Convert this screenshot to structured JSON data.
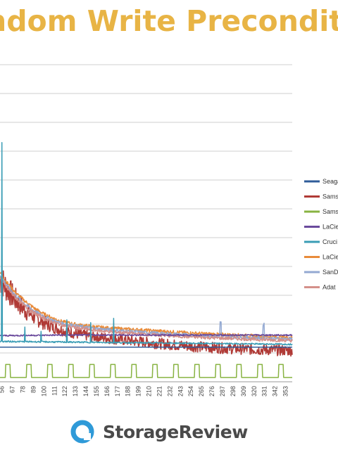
{
  "header": {
    "title": "ndom Write Precondit"
  },
  "brand": {
    "name": "StorageReview"
  },
  "colors": {
    "title": "#e8b445",
    "grid": "#cfcfcf",
    "brand_text": "#4a4a4a",
    "brand_logo": "#2f9ad8"
  },
  "chart_data": {
    "type": "line",
    "title": "",
    "xlabel": "",
    "ylabel": "",
    "grid": true,
    "legend_position": "right",
    "x_tick_labels": [
      "56",
      "67",
      "78",
      "89",
      "100",
      "111",
      "122",
      "133",
      "144",
      "155",
      "166",
      "177",
      "188",
      "199",
      "210",
      "221",
      "232",
      "243",
      "254",
      "265",
      "276",
      "287",
      "298",
      "309",
      "320",
      "331",
      "342",
      "353"
    ],
    "x_tick_values": [
      56,
      67,
      78,
      89,
      100,
      111,
      122,
      133,
      144,
      155,
      166,
      177,
      188,
      199,
      210,
      221,
      232,
      243,
      254,
      265,
      276,
      287,
      298,
      309,
      320,
      331,
      342,
      353
    ],
    "xlim": [
      54,
      360
    ],
    "ylim": [
      0,
      11
    ],
    "series": [
      {
        "name": "Seaga",
        "color": "#2f5c99",
        "kind": "flat_low",
        "points": [
          [
            54,
            1.2
          ],
          [
            360,
            1.2
          ]
        ]
      },
      {
        "name": "Sams",
        "color": "#b03a36",
        "kind": "noisy_decay",
        "points": [
          [
            54,
            3.6
          ],
          [
            60,
            3.3
          ],
          [
            70,
            2.85
          ],
          [
            80,
            2.5
          ],
          [
            90,
            2.25
          ],
          [
            100,
            2.05
          ],
          [
            110,
            1.9
          ],
          [
            120,
            1.78
          ],
          [
            135,
            1.66
          ],
          [
            150,
            1.58
          ],
          [
            165,
            1.52
          ],
          [
            180,
            1.46
          ],
          [
            200,
            1.39
          ],
          [
            220,
            1.33
          ],
          [
            240,
            1.27
          ],
          [
            260,
            1.22
          ],
          [
            280,
            1.18
          ],
          [
            300,
            1.15
          ],
          [
            320,
            1.12
          ],
          [
            340,
            1.1
          ],
          [
            360,
            1.08
          ]
        ]
      },
      {
        "name": "Sams",
        "color": "#88b342",
        "kind": "square_wave",
        "points": [
          [
            54,
            0.6
          ],
          [
            360,
            0.6
          ]
        ]
      },
      {
        "name": "LaCie",
        "color": "#6a4a9c",
        "kind": "flat",
        "points": [
          [
            54,
            1.6
          ],
          [
            120,
            1.62
          ],
          [
            180,
            1.62
          ],
          [
            360,
            1.62
          ]
        ]
      },
      {
        "name": "Cruci",
        "color": "#3a9db5",
        "kind": "spiky_flat",
        "points": [
          [
            54,
            1.4
          ],
          [
            360,
            1.3
          ]
        ]
      },
      {
        "name": "LaCie",
        "color": "#e88b3a",
        "kind": "smooth_decay",
        "points": [
          [
            54,
            3.8
          ],
          [
            60,
            3.5
          ],
          [
            70,
            3.1
          ],
          [
            80,
            2.8
          ],
          [
            90,
            2.55
          ],
          [
            100,
            2.35
          ],
          [
            110,
            2.2
          ],
          [
            120,
            2.08
          ],
          [
            135,
            1.98
          ],
          [
            150,
            1.92
          ],
          [
            165,
            1.87
          ],
          [
            180,
            1.84
          ],
          [
            200,
            1.8
          ],
          [
            220,
            1.76
          ],
          [
            240,
            1.72
          ],
          [
            260,
            1.68
          ],
          [
            280,
            1.65
          ],
          [
            300,
            1.62
          ],
          [
            320,
            1.59
          ],
          [
            340,
            1.56
          ],
          [
            360,
            1.54
          ]
        ]
      },
      {
        "name": "SanD",
        "color": "#93a9d2",
        "kind": "smooth_decay",
        "points": [
          [
            54,
            3.7
          ],
          [
            60,
            3.4
          ],
          [
            70,
            3.0
          ],
          [
            80,
            2.7
          ],
          [
            90,
            2.45
          ],
          [
            100,
            2.27
          ],
          [
            110,
            2.12
          ],
          [
            120,
            2.02
          ],
          [
            135,
            1.93
          ],
          [
            150,
            1.86
          ],
          [
            165,
            1.81
          ],
          [
            180,
            1.77
          ],
          [
            200,
            1.72
          ],
          [
            220,
            1.68
          ],
          [
            240,
            1.64
          ],
          [
            260,
            1.61
          ],
          [
            280,
            1.58
          ],
          [
            300,
            1.55
          ],
          [
            320,
            1.52
          ],
          [
            340,
            1.5
          ],
          [
            360,
            1.48
          ]
        ]
      },
      {
        "name": "Adat",
        "color": "#d4908a",
        "kind": "smooth_decay",
        "points": [
          [
            54,
            3.6
          ],
          [
            60,
            3.3
          ],
          [
            70,
            2.92
          ],
          [
            80,
            2.62
          ],
          [
            90,
            2.38
          ],
          [
            100,
            2.2
          ],
          [
            110,
            2.06
          ],
          [
            120,
            1.96
          ],
          [
            135,
            1.87
          ],
          [
            150,
            1.8
          ],
          [
            165,
            1.75
          ],
          [
            180,
            1.71
          ],
          [
            200,
            1.66
          ],
          [
            220,
            1.62
          ],
          [
            240,
            1.58
          ],
          [
            260,
            1.55
          ],
          [
            280,
            1.52
          ],
          [
            300,
            1.5
          ],
          [
            320,
            1.47
          ],
          [
            340,
            1.45
          ],
          [
            360,
            1.43
          ]
        ]
      }
    ]
  }
}
